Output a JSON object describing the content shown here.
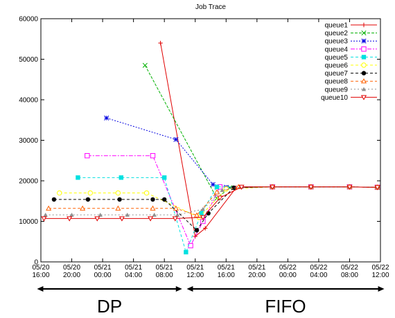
{
  "chart_data": {
    "type": "line",
    "title": "Job Trace",
    "xlabel": "",
    "ylabel": "",
    "x_unit": "hours",
    "x_start_label": "05/20 16:00",
    "xlim": [
      0,
      44
    ],
    "ylim": [
      0,
      60000
    ],
    "grid": false,
    "legend_position": "top-right",
    "y_ticks": [
      "0",
      "10000",
      "20000",
      "30000",
      "40000",
      "50000",
      "60000"
    ],
    "x_ticks": [
      {
        "x": 0,
        "l1": "05/20",
        "l2": "16:00"
      },
      {
        "x": 4,
        "l1": "05/20",
        "l2": "20:00"
      },
      {
        "x": 8,
        "l1": "05/21",
        "l2": "00:00"
      },
      {
        "x": 12,
        "l1": "05/21",
        "l2": "04:00"
      },
      {
        "x": 16,
        "l1": "05/21",
        "l2": "08:00"
      },
      {
        "x": 20,
        "l1": "05/21",
        "l2": "12:00"
      },
      {
        "x": 24,
        "l1": "05/21",
        "l2": "16:00"
      },
      {
        "x": 28,
        "l1": "05/21",
        "l2": "20:00"
      },
      {
        "x": 32,
        "l1": "05/22",
        "l2": "00:00"
      },
      {
        "x": 36,
        "l1": "05/22",
        "l2": "04:00"
      },
      {
        "x": 40,
        "l1": "05/22",
        "l2": "08:00"
      },
      {
        "x": 44,
        "l1": "05/22",
        "l2": "12:00"
      }
    ],
    "phases": [
      {
        "label": "DP",
        "from": -0.5,
        "to": 18.3
      },
      {
        "label": "FIFO",
        "from": 18.9,
        "to": 44.5
      }
    ],
    "series": [
      {
        "name": "queue1",
        "color": "#e00000",
        "dash": "",
        "marker": "plus",
        "points": [
          [
            15.5,
            54000
          ],
          [
            20.0,
            6300
          ],
          [
            21.3,
            8300
          ],
          [
            25.3,
            18300
          ],
          [
            30,
            18500
          ],
          [
            35,
            18500
          ],
          [
            40,
            18500
          ],
          [
            43.6,
            18400
          ]
        ]
      },
      {
        "name": "queue2",
        "color": "#00b000",
        "dash": "4,2",
        "marker": "cross",
        "points": [
          [
            13.5,
            48500
          ],
          [
            22.8,
            15700
          ],
          [
            24.5,
            18300
          ],
          [
            30,
            18500
          ],
          [
            35,
            18500
          ],
          [
            40,
            18500
          ],
          [
            43.6,
            18400
          ]
        ]
      },
      {
        "name": "queue3",
        "color": "#0000e0",
        "dash": "2,2",
        "marker": "star",
        "points": [
          [
            8.5,
            35500
          ],
          [
            17.5,
            30200
          ],
          [
            22.3,
            19100
          ],
          [
            24.0,
            18400
          ],
          [
            30,
            18500
          ],
          [
            35,
            18500
          ],
          [
            40,
            18500
          ],
          [
            43.6,
            18400
          ]
        ]
      },
      {
        "name": "queue4",
        "color": "#ff00ff",
        "dash": "6,2,2,2",
        "marker": "opensquare",
        "points": [
          [
            6.0,
            26200
          ],
          [
            14.5,
            26200
          ],
          [
            19.4,
            4000
          ],
          [
            21.0,
            10000
          ],
          [
            23.2,
            18500
          ],
          [
            30,
            18500
          ],
          [
            35,
            18500
          ],
          [
            40,
            18500
          ],
          [
            43.6,
            18400
          ]
        ]
      },
      {
        "name": "queue5",
        "color": "#00e0e0",
        "dash": "4,3",
        "marker": "square",
        "points": [
          [
            4.8,
            20800
          ],
          [
            10.4,
            20800
          ],
          [
            16.0,
            20800
          ],
          [
            18.8,
            2400
          ],
          [
            20.8,
            12000
          ],
          [
            22.8,
            18500
          ],
          [
            30,
            18500
          ],
          [
            35,
            18500
          ],
          [
            40,
            18500
          ],
          [
            43.6,
            18400
          ]
        ]
      },
      {
        "name": "queue6",
        "color": "#ffff00",
        "dash": "4,3",
        "marker": "opencircle",
        "points": [
          [
            2.4,
            17000
          ],
          [
            6.4,
            17000
          ],
          [
            10.0,
            17000
          ],
          [
            13.7,
            17000
          ],
          [
            20.5,
            11000
          ],
          [
            24.0,
            18000
          ],
          [
            30,
            18500
          ],
          [
            35,
            18500
          ],
          [
            40,
            18500
          ],
          [
            43.6,
            18400
          ]
        ]
      },
      {
        "name": "queue7",
        "color": "#000000",
        "dash": "4,3",
        "marker": "circle",
        "points": [
          [
            1.7,
            15400
          ],
          [
            6.1,
            15400
          ],
          [
            10.2,
            15400
          ],
          [
            14.5,
            15400
          ],
          [
            16.0,
            15400
          ],
          [
            20.2,
            7800
          ],
          [
            21.7,
            12000
          ],
          [
            25.0,
            18300
          ],
          [
            30,
            18500
          ],
          [
            35,
            18500
          ],
          [
            40,
            18500
          ],
          [
            43.6,
            18400
          ]
        ]
      },
      {
        "name": "queue8",
        "color": "#ff6000",
        "dash": "4,3",
        "marker": "opentriangle",
        "points": [
          [
            1.0,
            13200
          ],
          [
            5.4,
            13200
          ],
          [
            10.0,
            13200
          ],
          [
            14.5,
            13200
          ],
          [
            17.5,
            13200
          ],
          [
            20.2,
            11500
          ],
          [
            22.8,
            17200
          ],
          [
            25.6,
            18500
          ],
          [
            30,
            18500
          ],
          [
            35,
            18500
          ],
          [
            40,
            18500
          ],
          [
            43.6,
            18400
          ]
        ]
      },
      {
        "name": "queue9",
        "color": "#909090",
        "dash": "2,3",
        "marker": "triangle",
        "points": [
          [
            0.6,
            11600
          ],
          [
            4.0,
            11600
          ],
          [
            7.7,
            11600
          ],
          [
            11.2,
            11600
          ],
          [
            14.7,
            11600
          ],
          [
            17.7,
            11600
          ],
          [
            21.0,
            13000
          ],
          [
            23.5,
            17700
          ],
          [
            26,
            18500
          ],
          [
            30,
            18500
          ],
          [
            35,
            18500
          ],
          [
            40,
            18500
          ],
          [
            43.6,
            18400
          ]
        ]
      },
      {
        "name": "queue10",
        "color": "#e00000",
        "dash": "",
        "marker": "opentriangledown",
        "points": [
          [
            0.4,
            10700
          ],
          [
            3.7,
            10700
          ],
          [
            7.3,
            10700
          ],
          [
            10.5,
            10700
          ],
          [
            14.2,
            10700
          ],
          [
            17.4,
            10700
          ],
          [
            21.0,
            11000
          ],
          [
            23.2,
            15800
          ],
          [
            26,
            18500
          ],
          [
            30,
            18500
          ],
          [
            35,
            18500
          ],
          [
            40,
            18500
          ],
          [
            43.6,
            18400
          ]
        ]
      }
    ]
  }
}
